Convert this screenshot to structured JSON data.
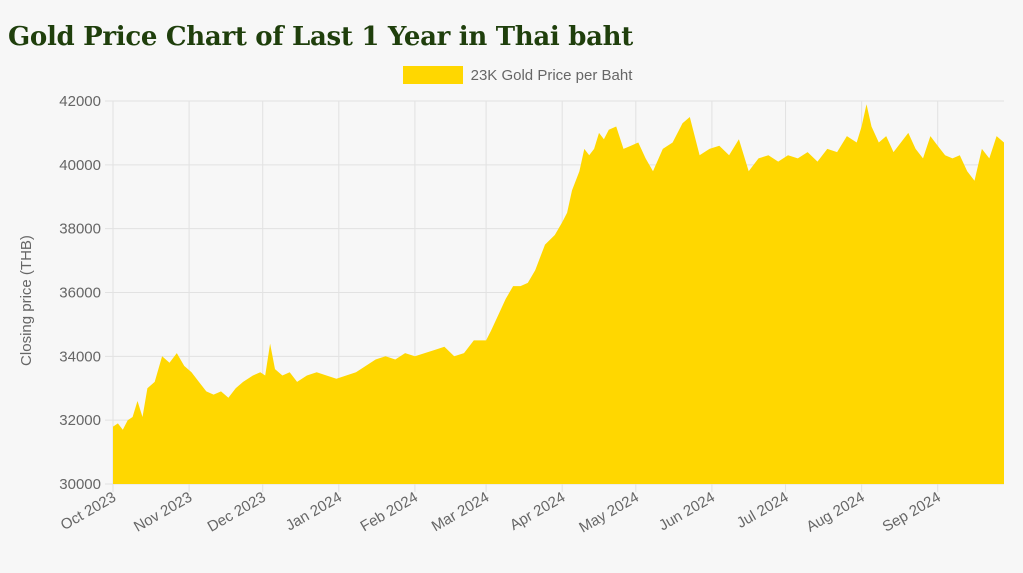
{
  "page": {
    "title": "Gold Price Chart of Last 1 Year in Thai baht"
  },
  "chart_data": {
    "type": "area",
    "title": "Gold Price Chart of Last 1 Year in Thai baht",
    "xlabel": "",
    "ylabel": "Closing price (THB)",
    "ylim": [
      30000,
      42000
    ],
    "yticks": [
      30000,
      32000,
      34000,
      36000,
      38000,
      40000,
      42000
    ],
    "xlim": [
      "2023-10-01",
      "2024-09-28"
    ],
    "xtick_labels": [
      "Oct 2023",
      "Nov 2023",
      "Dec 2023",
      "Jan 2024",
      "Feb 2024",
      "Mar 2024",
      "Apr 2024",
      "May 2024",
      "Jun 2024",
      "Jul 2024",
      "Aug 2024",
      "Sep 2024"
    ],
    "xtick_dates": [
      "2023-10-01",
      "2023-11-01",
      "2023-12-01",
      "2024-01-01",
      "2024-02-01",
      "2024-03-01",
      "2024-04-01",
      "2024-05-01",
      "2024-06-01",
      "2024-07-01",
      "2024-08-01",
      "2024-09-01"
    ],
    "grid": true,
    "legend_position": "top",
    "colors": {
      "fill": "#ffd700",
      "grid": "#e2e2e2",
      "title": "#1f3f0c"
    },
    "series": [
      {
        "name": "23K Gold Price per Baht",
        "x": [
          "2023-10-01",
          "2023-10-03",
          "2023-10-05",
          "2023-10-07",
          "2023-10-09",
          "2023-10-11",
          "2023-10-13",
          "2023-10-15",
          "2023-10-18",
          "2023-10-21",
          "2023-10-24",
          "2023-10-27",
          "2023-10-30",
          "2023-11-02",
          "2023-11-05",
          "2023-11-08",
          "2023-11-11",
          "2023-11-14",
          "2023-11-17",
          "2023-11-20",
          "2023-11-23",
          "2023-11-27",
          "2023-11-30",
          "2023-12-02",
          "2023-12-04",
          "2023-12-06",
          "2023-12-09",
          "2023-12-12",
          "2023-12-15",
          "2023-12-19",
          "2023-12-23",
          "2023-12-27",
          "2023-12-31",
          "2024-01-04",
          "2024-01-08",
          "2024-01-12",
          "2024-01-16",
          "2024-01-20",
          "2024-01-24",
          "2024-01-28",
          "2024-02-01",
          "2024-02-05",
          "2024-02-09",
          "2024-02-13",
          "2024-02-17",
          "2024-02-21",
          "2024-02-25",
          "2024-03-01",
          "2024-03-03",
          "2024-03-06",
          "2024-03-09",
          "2024-03-12",
          "2024-03-15",
          "2024-03-18",
          "2024-03-21",
          "2024-03-25",
          "2024-03-29",
          "2024-04-01",
          "2024-04-03",
          "2024-04-05",
          "2024-04-08",
          "2024-04-10",
          "2024-04-12",
          "2024-04-14",
          "2024-04-16",
          "2024-04-18",
          "2024-04-20",
          "2024-04-23",
          "2024-04-26",
          "2024-04-29",
          "2024-05-02",
          "2024-05-05",
          "2024-05-08",
          "2024-05-12",
          "2024-05-16",
          "2024-05-20",
          "2024-05-23",
          "2024-05-27",
          "2024-05-31",
          "2024-06-04",
          "2024-06-08",
          "2024-06-12",
          "2024-06-16",
          "2024-06-20",
          "2024-06-24",
          "2024-06-28",
          "2024-07-02",
          "2024-07-06",
          "2024-07-10",
          "2024-07-14",
          "2024-07-18",
          "2024-07-22",
          "2024-07-26",
          "2024-07-30",
          "2024-08-01",
          "2024-08-03",
          "2024-08-05",
          "2024-08-08",
          "2024-08-11",
          "2024-08-14",
          "2024-08-17",
          "2024-08-20",
          "2024-08-23",
          "2024-08-26",
          "2024-08-29",
          "2024-09-01",
          "2024-09-04",
          "2024-09-07",
          "2024-09-10",
          "2024-09-13",
          "2024-09-16",
          "2024-09-19",
          "2024-09-22",
          "2024-09-25",
          "2024-09-28"
        ],
        "values": [
          31800,
          31900,
          31700,
          32000,
          32100,
          32600,
          32100,
          33000,
          33200,
          34000,
          33800,
          34100,
          33700,
          33500,
          33200,
          32900,
          32800,
          32900,
          32700,
          33000,
          33200,
          33400,
          33500,
          33400,
          34400,
          33600,
          33400,
          33500,
          33200,
          33400,
          33500,
          33400,
          33300,
          33400,
          33500,
          33700,
          33900,
          34000,
          33900,
          34100,
          34000,
          34100,
          34200,
          34300,
          34000,
          34100,
          34500,
          34500,
          34800,
          35300,
          35800,
          36200,
          36200,
          36300,
          36700,
          37500,
          37800,
          38200,
          38500,
          39200,
          39800,
          40500,
          40300,
          40500,
          41000,
          40800,
          41100,
          41200,
          40500,
          40600,
          40700,
          40200,
          39800,
          40500,
          40700,
          41300,
          41500,
          40300,
          40500,
          40600,
          40300,
          40800,
          39800,
          40200,
          40300,
          40100,
          40300,
          40200,
          40400,
          40100,
          40500,
          40400,
          40900,
          40700,
          41200,
          41900,
          41200,
          40700,
          40900,
          40400,
          40700,
          41000,
          40500,
          40200,
          40900,
          40600,
          40300,
          40200,
          40300,
          39800,
          39500,
          40500,
          40200,
          40900,
          40700
        ]
      }
    ]
  }
}
